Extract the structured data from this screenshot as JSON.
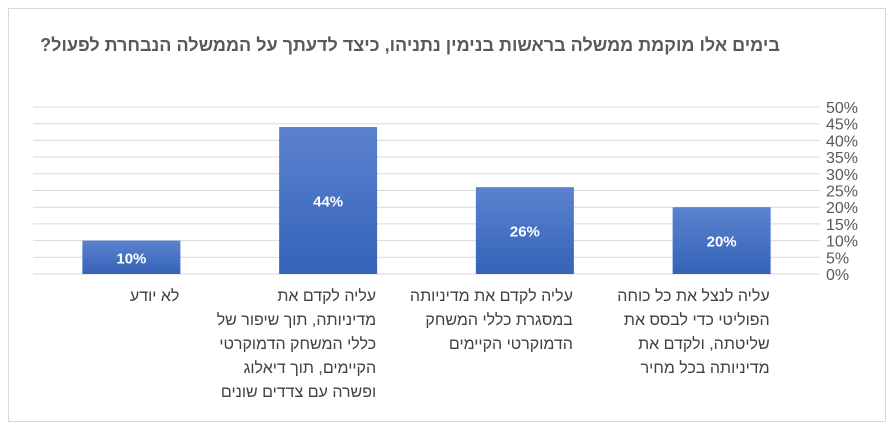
{
  "chart_data": {
    "type": "bar",
    "title": "בימים אלו מוקמת ממשלה בראשות בנימין נתניהו, כיצד לדעתך על הממשלה הנבחרת לפעול?",
    "categories": [
      "עליה לנצל את כל כוחה הפוליטי כדי לבסס את שליטתה, ולקדם את מדיניותה בכל מחיר",
      "עליה לקדם את מדיניותה במסגרת כללי המשחק הדמוקרטי הקיימים",
      "עליה לקדם את מדיניותה, תוך שיפור של כללי המשחק הדמוקרטי הקיימים, תוך דיאלוג ופשרה עם צדדים שונים",
      "לא יודע"
    ],
    "values": [
      20,
      26,
      44,
      10
    ],
    "data_labels": [
      "20%",
      "26%",
      "44%",
      "10%"
    ],
    "y_ticks": [
      "0%",
      "5%",
      "10%",
      "15%",
      "20%",
      "25%",
      "30%",
      "35%",
      "40%",
      "45%",
      "50%"
    ],
    "ylim": [
      0,
      50
    ],
    "y_axis_side": "right",
    "grid": true,
    "legend": "none",
    "colors": {
      "bar_top": "#5b82cf",
      "bar_bottom": "#3563b8",
      "grid": "#d9d9d9",
      "text": "#595959",
      "label_text": "#ffffff"
    }
  }
}
